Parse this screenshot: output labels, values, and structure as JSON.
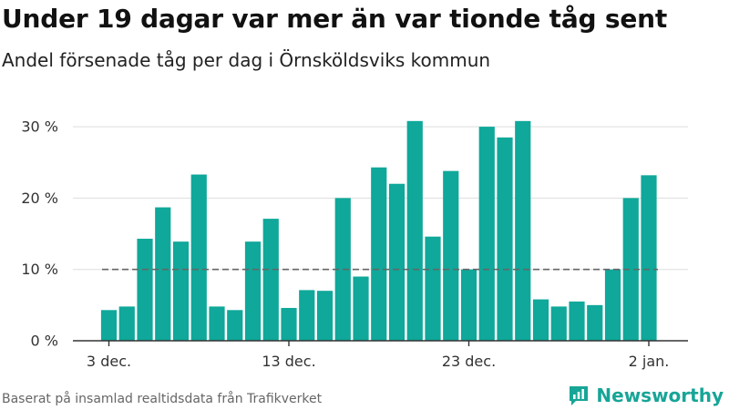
{
  "header": {
    "title": "Under 19 dagar var mer än var tionde tåg sent",
    "subtitle": "Andel försenade tåg per dag i Örnsköldsviks kommun"
  },
  "footer": {
    "source": "Baserat på insamlad realtidsdata från Trafikverket",
    "brand": "Newsworthy",
    "brand_icon": "newsworthy-logo-icon"
  },
  "colors": {
    "bar": "#0fa89a",
    "grid": "#dddddd",
    "reference": "#666666",
    "axis": "#333333",
    "brand": "#17a597"
  },
  "chart_data": {
    "type": "bar",
    "title": "Under 19 dagar var mer än var tionde tåg sent",
    "subtitle": "Andel försenade tåg per dag i Örnsköldsviks kommun",
    "xlabel": "",
    "ylabel": "",
    "ylim": [
      0,
      32
    ],
    "yticks": [
      0,
      10,
      20,
      30
    ],
    "ytick_labels": [
      "0 %",
      "10 %",
      "20 %",
      "30 %"
    ],
    "grid": true,
    "legend": "none",
    "categories": [
      "2018-12-03",
      "2018-12-04",
      "2018-12-05",
      "2018-12-06",
      "2018-12-07",
      "2018-12-08",
      "2018-12-09",
      "2018-12-10",
      "2018-12-11",
      "2018-12-12",
      "2018-12-13",
      "2018-12-14",
      "2018-12-15",
      "2018-12-16",
      "2018-12-17",
      "2018-12-18",
      "2018-12-19",
      "2018-12-20",
      "2018-12-21",
      "2018-12-22",
      "2018-12-23",
      "2018-12-24",
      "2018-12-25",
      "2018-12-26",
      "2018-12-27",
      "2018-12-28",
      "2018-12-29",
      "2018-12-30",
      "2018-12-31",
      "2019-01-01",
      "2019-01-02"
    ],
    "values": [
      4.3,
      4.8,
      14.3,
      18.7,
      13.9,
      23.3,
      4.8,
      4.3,
      13.9,
      17.1,
      4.6,
      7.1,
      7.0,
      20.0,
      9.0,
      24.3,
      22.0,
      30.8,
      14.6,
      23.8,
      10.0,
      30.0,
      28.5,
      30.8,
      5.8,
      4.8,
      5.5,
      5.0,
      10.0,
      20.0,
      23.2
    ],
    "xticks": [
      "2018-12-03",
      "2018-12-13",
      "2018-12-23",
      "2019-01-02"
    ],
    "xtick_labels": [
      "3 dec.",
      "13 dec.",
      "23 dec.",
      "2 jan."
    ],
    "reference_line": {
      "y": 10,
      "style": "dashed"
    }
  }
}
